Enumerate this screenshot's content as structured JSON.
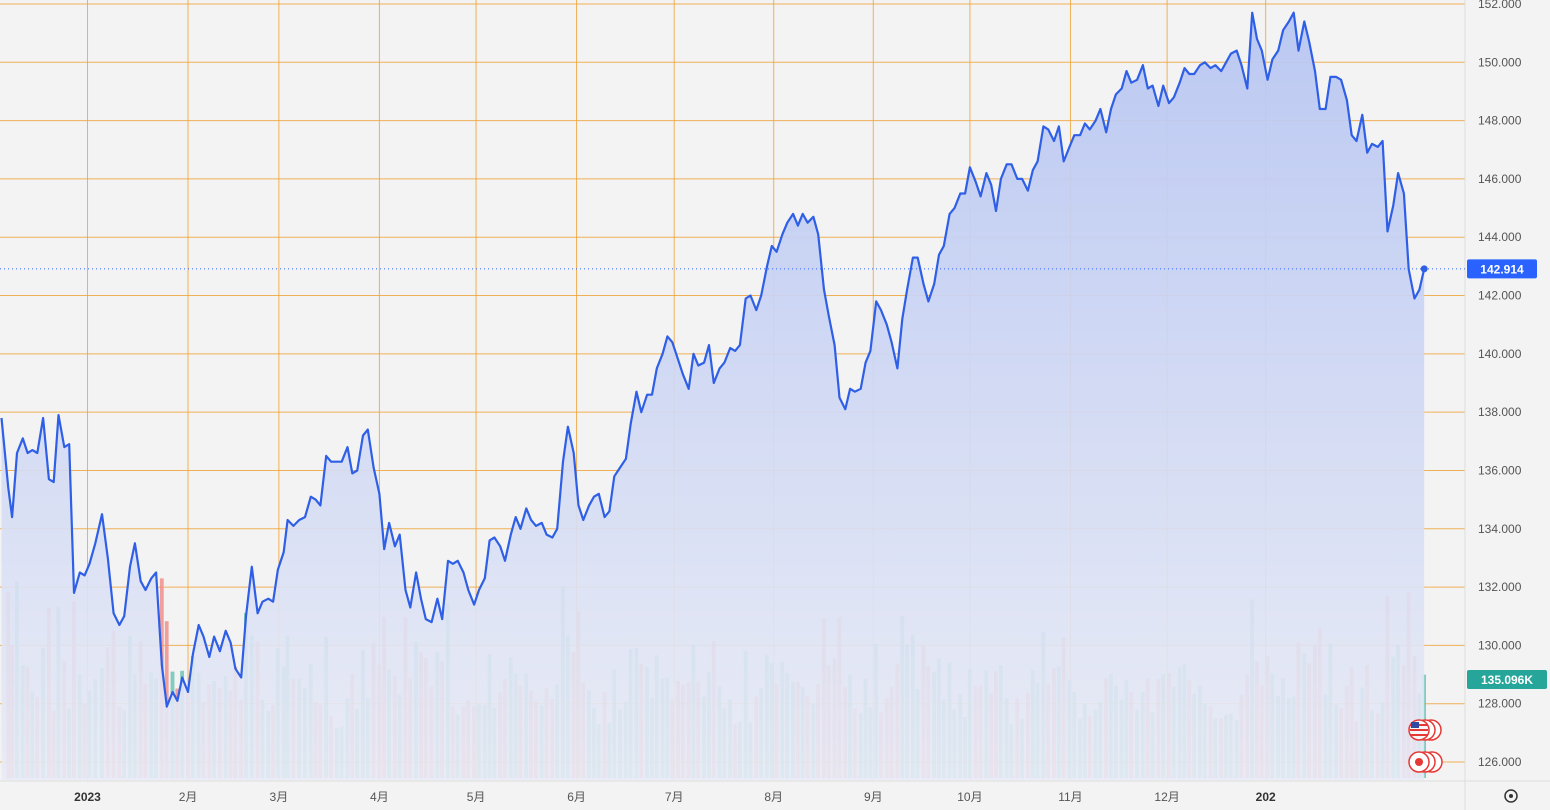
{
  "chart_data": {
    "type": "line",
    "instrument_note": "",
    "price_axis": {
      "ylim": [
        125.6,
        152.3
      ],
      "ticks": [
        "152.000",
        "150.000",
        "148.000",
        "146.000",
        "144.000",
        "142.000",
        "140.000",
        "138.000",
        "136.000",
        "134.000",
        "132.000",
        "130.000",
        "128.000",
        "126.000"
      ],
      "tick_values": [
        152,
        150,
        148,
        146,
        144,
        142,
        140,
        138,
        136,
        134,
        132,
        130,
        128,
        126
      ]
    },
    "time_axis": {
      "ticks": [
        {
          "label": "12月",
          "t": -0.2,
          "year": false
        },
        {
          "label": "2023",
          "t": 0.89,
          "year": true
        },
        {
          "label": "2月",
          "t": 1.93,
          "year": false
        },
        {
          "label": "3月",
          "t": 2.87,
          "year": false
        },
        {
          "label": "4月",
          "t": 3.91,
          "year": false
        },
        {
          "label": "5月",
          "t": 4.91,
          "year": false
        },
        {
          "label": "6月",
          "t": 5.95,
          "year": false
        },
        {
          "label": "7月",
          "t": 6.96,
          "year": false
        },
        {
          "label": "8月",
          "t": 7.99,
          "year": false
        },
        {
          "label": "9月",
          "t": 9.02,
          "year": false
        },
        {
          "label": "10月",
          "t": 10.02,
          "year": false
        },
        {
          "label": "11月",
          "t": 11.06,
          "year": false
        },
        {
          "label": "12月",
          "t": 12.06,
          "year": false
        },
        {
          "label": "202",
          "t": 13.08,
          "year": true
        }
      ]
    },
    "last_price": {
      "value": 142.914,
      "label": "142.914",
      "color": "#2962ff"
    },
    "last_volume": {
      "label": "135.096K",
      "color": "#26a69a"
    },
    "colors": {
      "line": "#2e5fe6",
      "area_top": "#b8c6f2",
      "area_bottom": "#e8ebf6",
      "grid": "#f0a030",
      "volume_up": "#6cc3b5",
      "volume_down": "#ef8f8a",
      "background": "#f3f3f3"
    },
    "price_series": [
      [
        0.0,
        137.8
      ],
      [
        0.07,
        135.4
      ],
      [
        0.11,
        134.4
      ],
      [
        0.16,
        136.6
      ],
      [
        0.22,
        137.1
      ],
      [
        0.27,
        136.6
      ],
      [
        0.32,
        136.7
      ],
      [
        0.37,
        136.6
      ],
      [
        0.43,
        137.8
      ],
      [
        0.49,
        135.7
      ],
      [
        0.54,
        135.6
      ],
      [
        0.59,
        137.9
      ],
      [
        0.65,
        136.8
      ],
      [
        0.7,
        136.9
      ],
      [
        0.75,
        131.8
      ],
      [
        0.81,
        132.5
      ],
      [
        0.86,
        132.4
      ],
      [
        0.91,
        132.8
      ],
      [
        0.97,
        133.5
      ],
      [
        1.04,
        134.5
      ],
      [
        1.1,
        133.0
      ],
      [
        1.16,
        131.1
      ],
      [
        1.22,
        130.7
      ],
      [
        1.27,
        131.0
      ],
      [
        1.33,
        132.7
      ],
      [
        1.38,
        133.5
      ],
      [
        1.44,
        132.2
      ],
      [
        1.49,
        131.9
      ],
      [
        1.55,
        132.3
      ],
      [
        1.6,
        132.5
      ],
      [
        1.66,
        129.3
      ],
      [
        1.71,
        127.9
      ],
      [
        1.77,
        128.4
      ],
      [
        1.82,
        128.1
      ],
      [
        1.87,
        128.9
      ],
      [
        1.93,
        128.4
      ],
      [
        1.98,
        129.7
      ],
      [
        2.04,
        130.7
      ],
      [
        2.09,
        130.3
      ],
      [
        2.15,
        129.6
      ],
      [
        2.2,
        130.3
      ],
      [
        2.26,
        129.8
      ],
      [
        2.32,
        130.5
      ],
      [
        2.37,
        130.1
      ],
      [
        2.42,
        129.2
      ],
      [
        2.48,
        128.9
      ],
      [
        2.53,
        131.0
      ],
      [
        2.59,
        132.7
      ],
      [
        2.65,
        131.1
      ],
      [
        2.7,
        131.5
      ],
      [
        2.76,
        131.6
      ],
      [
        2.81,
        131.5
      ],
      [
        2.86,
        132.6
      ],
      [
        2.92,
        133.2
      ],
      [
        2.96,
        134.3
      ],
      [
        3.02,
        134.1
      ],
      [
        3.08,
        134.3
      ],
      [
        3.14,
        134.4
      ],
      [
        3.2,
        135.1
      ],
      [
        3.25,
        135.0
      ],
      [
        3.3,
        134.8
      ],
      [
        3.36,
        136.5
      ],
      [
        3.41,
        136.3
      ],
      [
        3.47,
        136.3
      ],
      [
        3.52,
        136.3
      ],
      [
        3.58,
        136.8
      ],
      [
        3.63,
        135.9
      ],
      [
        3.68,
        136.0
      ],
      [
        3.74,
        137.2
      ],
      [
        3.79,
        137.4
      ],
      [
        3.85,
        136.1
      ],
      [
        3.91,
        135.2
      ],
      [
        3.96,
        133.3
      ],
      [
        4.01,
        134.2
      ],
      [
        4.07,
        133.4
      ],
      [
        4.12,
        133.8
      ],
      [
        4.18,
        131.9
      ],
      [
        4.23,
        131.3
      ],
      [
        4.29,
        132.5
      ],
      [
        4.34,
        131.6
      ],
      [
        4.39,
        130.9
      ],
      [
        4.45,
        130.8
      ],
      [
        4.51,
        131.6
      ],
      [
        4.56,
        130.9
      ],
      [
        4.62,
        132.9
      ],
      [
        4.67,
        132.8
      ],
      [
        4.72,
        132.9
      ],
      [
        4.78,
        132.5
      ],
      [
        4.83,
        131.9
      ],
      [
        4.89,
        131.4
      ],
      [
        4.94,
        131.9
      ],
      [
        5.0,
        132.3
      ],
      [
        5.05,
        133.6
      ],
      [
        5.1,
        133.7
      ],
      [
        5.16,
        133.4
      ],
      [
        5.21,
        132.9
      ],
      [
        5.27,
        133.8
      ],
      [
        5.32,
        134.4
      ],
      [
        5.37,
        134.0
      ],
      [
        5.43,
        134.7
      ],
      [
        5.48,
        134.3
      ],
      [
        5.53,
        134.1
      ],
      [
        5.59,
        134.2
      ],
      [
        5.64,
        133.8
      ],
      [
        5.7,
        133.7
      ],
      [
        5.75,
        134.0
      ],
      [
        5.81,
        136.3
      ],
      [
        5.86,
        137.5
      ],
      [
        5.92,
        136.6
      ],
      [
        5.97,
        134.8
      ],
      [
        6.02,
        134.3
      ],
      [
        6.08,
        134.8
      ],
      [
        6.13,
        135.1
      ],
      [
        6.18,
        135.2
      ],
      [
        6.24,
        134.4
      ],
      [
        6.29,
        134.6
      ],
      [
        6.34,
        135.8
      ],
      [
        6.4,
        136.1
      ],
      [
        6.46,
        136.4
      ],
      [
        6.51,
        137.6
      ],
      [
        6.57,
        138.7
      ],
      [
        6.62,
        138.0
      ],
      [
        6.68,
        138.6
      ],
      [
        6.73,
        138.6
      ],
      [
        6.78,
        139.5
      ],
      [
        6.84,
        140.0
      ],
      [
        6.89,
        140.6
      ],
      [
        6.94,
        140.4
      ],
      [
        7.0,
        139.8
      ],
      [
        7.05,
        139.3
      ],
      [
        7.11,
        138.8
      ],
      [
        7.16,
        140.0
      ],
      [
        7.21,
        139.6
      ],
      [
        7.27,
        139.7
      ],
      [
        7.32,
        140.3
      ],
      [
        7.37,
        139.0
      ],
      [
        7.43,
        139.5
      ],
      [
        7.48,
        139.7
      ],
      [
        7.54,
        140.2
      ],
      [
        7.59,
        140.1
      ],
      [
        7.64,
        140.3
      ],
      [
        7.7,
        141.9
      ],
      [
        7.75,
        142.0
      ],
      [
        7.81,
        141.5
      ],
      [
        7.86,
        142.0
      ],
      [
        7.92,
        143.0
      ],
      [
        7.97,
        143.7
      ],
      [
        8.02,
        143.5
      ],
      [
        8.08,
        144.1
      ],
      [
        8.13,
        144.5
      ],
      [
        8.19,
        144.8
      ],
      [
        8.24,
        144.4
      ],
      [
        8.29,
        144.8
      ],
      [
        8.34,
        144.5
      ],
      [
        8.4,
        144.7
      ],
      [
        8.45,
        144.1
      ],
      [
        8.51,
        142.2
      ],
      [
        8.56,
        141.3
      ],
      [
        8.62,
        140.3
      ],
      [
        8.67,
        138.5
      ],
      [
        8.73,
        138.1
      ],
      [
        8.78,
        138.8
      ],
      [
        8.83,
        138.7
      ],
      [
        8.89,
        138.8
      ],
      [
        8.94,
        139.7
      ],
      [
        8.99,
        140.1
      ],
      [
        9.05,
        141.8
      ],
      [
        9.1,
        141.5
      ],
      [
        9.16,
        141.0
      ],
      [
        9.21,
        140.4
      ],
      [
        9.27,
        139.5
      ],
      [
        9.32,
        141.2
      ],
      [
        9.37,
        142.2
      ],
      [
        9.43,
        143.3
      ],
      [
        9.48,
        143.3
      ],
      [
        9.54,
        142.4
      ],
      [
        9.59,
        141.8
      ],
      [
        9.65,
        142.4
      ],
      [
        9.7,
        143.4
      ],
      [
        9.75,
        143.7
      ],
      [
        9.81,
        144.8
      ],
      [
        9.86,
        145.0
      ],
      [
        9.92,
        145.5
      ],
      [
        9.97,
        145.5
      ],
      [
        10.02,
        146.4
      ],
      [
        10.08,
        145.9
      ],
      [
        10.13,
        145.4
      ],
      [
        10.19,
        146.2
      ],
      [
        10.24,
        145.8
      ],
      [
        10.29,
        144.9
      ],
      [
        10.34,
        146.0
      ],
      [
        10.4,
        146.5
      ],
      [
        10.45,
        146.5
      ],
      [
        10.51,
        146.0
      ],
      [
        10.56,
        146.0
      ],
      [
        10.62,
        145.6
      ],
      [
        10.67,
        146.3
      ],
      [
        10.72,
        146.6
      ],
      [
        10.78,
        147.8
      ],
      [
        10.83,
        147.7
      ],
      [
        10.89,
        147.3
      ],
      [
        10.94,
        147.8
      ],
      [
        10.99,
        146.6
      ],
      [
        11.05,
        147.1
      ],
      [
        11.1,
        147.5
      ],
      [
        11.16,
        147.5
      ],
      [
        11.21,
        147.9
      ],
      [
        11.26,
        147.7
      ],
      [
        11.32,
        148.0
      ],
      [
        11.37,
        148.4
      ],
      [
        11.43,
        147.6
      ],
      [
        11.48,
        148.4
      ],
      [
        11.53,
        148.9
      ],
      [
        11.59,
        149.1
      ],
      [
        11.64,
        149.7
      ],
      [
        11.69,
        149.3
      ],
      [
        11.75,
        149.4
      ],
      [
        11.81,
        149.9
      ],
      [
        11.86,
        149.1
      ],
      [
        11.91,
        149.2
      ],
      [
        11.97,
        148.5
      ],
      [
        12.02,
        149.2
      ],
      [
        12.08,
        148.6
      ],
      [
        12.13,
        148.8
      ],
      [
        12.19,
        149.3
      ],
      [
        12.24,
        149.8
      ],
      [
        12.29,
        149.6
      ],
      [
        12.34,
        149.6
      ],
      [
        12.4,
        149.9
      ],
      [
        12.45,
        150.0
      ],
      [
        12.51,
        149.8
      ],
      [
        12.56,
        149.9
      ],
      [
        12.62,
        149.7
      ],
      [
        12.67,
        150.0
      ],
      [
        12.72,
        150.3
      ],
      [
        12.78,
        150.4
      ],
      [
        12.83,
        149.9
      ],
      [
        12.89,
        149.1
      ],
      [
        12.94,
        151.7
      ],
      [
        12.99,
        150.8
      ],
      [
        13.04,
        150.4
      ],
      [
        13.1,
        149.4
      ],
      [
        13.15,
        150.1
      ],
      [
        13.21,
        150.4
      ],
      [
        13.26,
        151.1
      ],
      [
        13.32,
        151.4
      ],
      [
        13.37,
        151.7
      ],
      [
        13.42,
        150.4
      ],
      [
        13.48,
        151.4
      ],
      [
        13.53,
        150.7
      ],
      [
        13.59,
        149.7
      ],
      [
        13.64,
        148.4
      ],
      [
        13.7,
        148.4
      ],
      [
        13.75,
        149.5
      ],
      [
        13.81,
        149.5
      ],
      [
        13.86,
        149.4
      ],
      [
        13.92,
        148.7
      ],
      [
        13.97,
        147.5
      ],
      [
        14.02,
        147.3
      ],
      [
        14.08,
        148.2
      ],
      [
        14.13,
        146.9
      ],
      [
        14.18,
        147.2
      ],
      [
        14.24,
        147.1
      ],
      [
        14.29,
        147.3
      ],
      [
        14.34,
        144.2
      ],
      [
        14.4,
        145.1
      ],
      [
        14.45,
        146.2
      ],
      [
        14.51,
        145.5
      ],
      [
        14.56,
        142.9
      ],
      [
        14.62,
        141.9
      ],
      [
        14.67,
        142.2
      ],
      [
        14.72,
        142.914
      ]
    ]
  }
}
